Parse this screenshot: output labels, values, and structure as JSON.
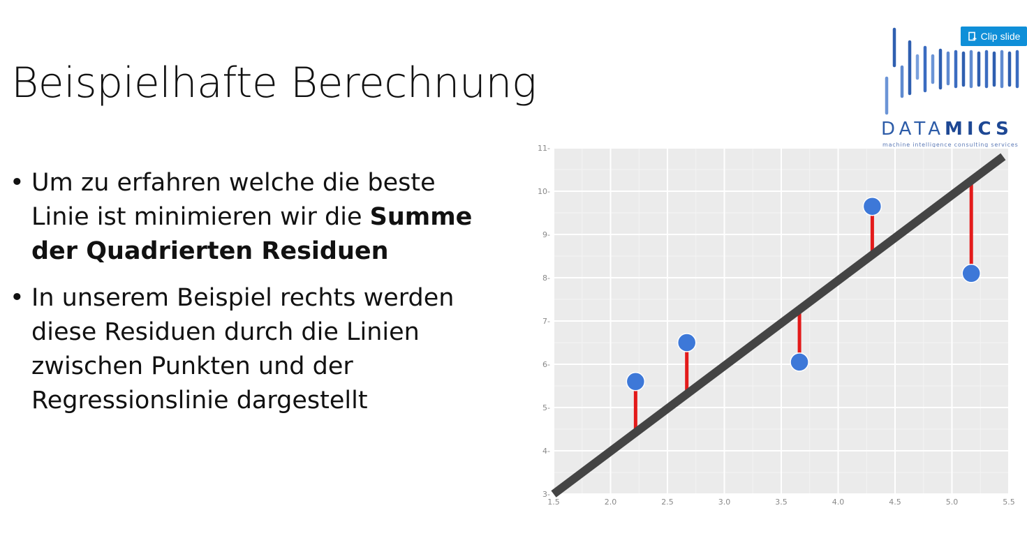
{
  "slide": {
    "title": "Beispielhafte Berechnung",
    "bullets": [
      {
        "marker": "•",
        "text_before": "Um zu erfahren welche die beste Linie ist minimieren wir die ",
        "bold": "Summe der Quadrierten Residuen"
      },
      {
        "marker": "•",
        "text": "In unserem Beispiel rechts werden diese Residuen durch die Linien zwischen Punkten und der Regressionslinie dargestellt"
      }
    ]
  },
  "clip_button": {
    "label": "Clip slide",
    "icon": "clip-icon",
    "color": "#0f8fd8"
  },
  "logo": {
    "word_part1": "DATA",
    "word_part2": "MICS",
    "tagline": "machine intelligence consulting services",
    "color": "#2d5ca8"
  },
  "chart_data": {
    "type": "scatter",
    "x": [
      2.22,
      2.67,
      3.66,
      4.3,
      5.17
    ],
    "y": [
      5.6,
      6.5,
      6.05,
      9.65,
      8.1
    ],
    "regression_line": {
      "x": [
        1.5,
        5.45
      ],
      "y": [
        3.0,
        10.8
      ]
    },
    "xlim": [
      1.5,
      5.5
    ],
    "ylim": [
      3,
      11
    ],
    "x_ticks": [
      "1.5",
      "2.0",
      "2.5",
      "3.0",
      "3.5",
      "4.0",
      "4.5",
      "5.0",
      "5.5"
    ],
    "y_ticks": [
      "3",
      "4",
      "5",
      "6",
      "7",
      "8",
      "9",
      "10",
      "11"
    ],
    "grid": true,
    "colors": {
      "points": "#3d78d8",
      "residuals": "#e31a1a",
      "line": "#444444",
      "background": "#ebebeb"
    }
  }
}
